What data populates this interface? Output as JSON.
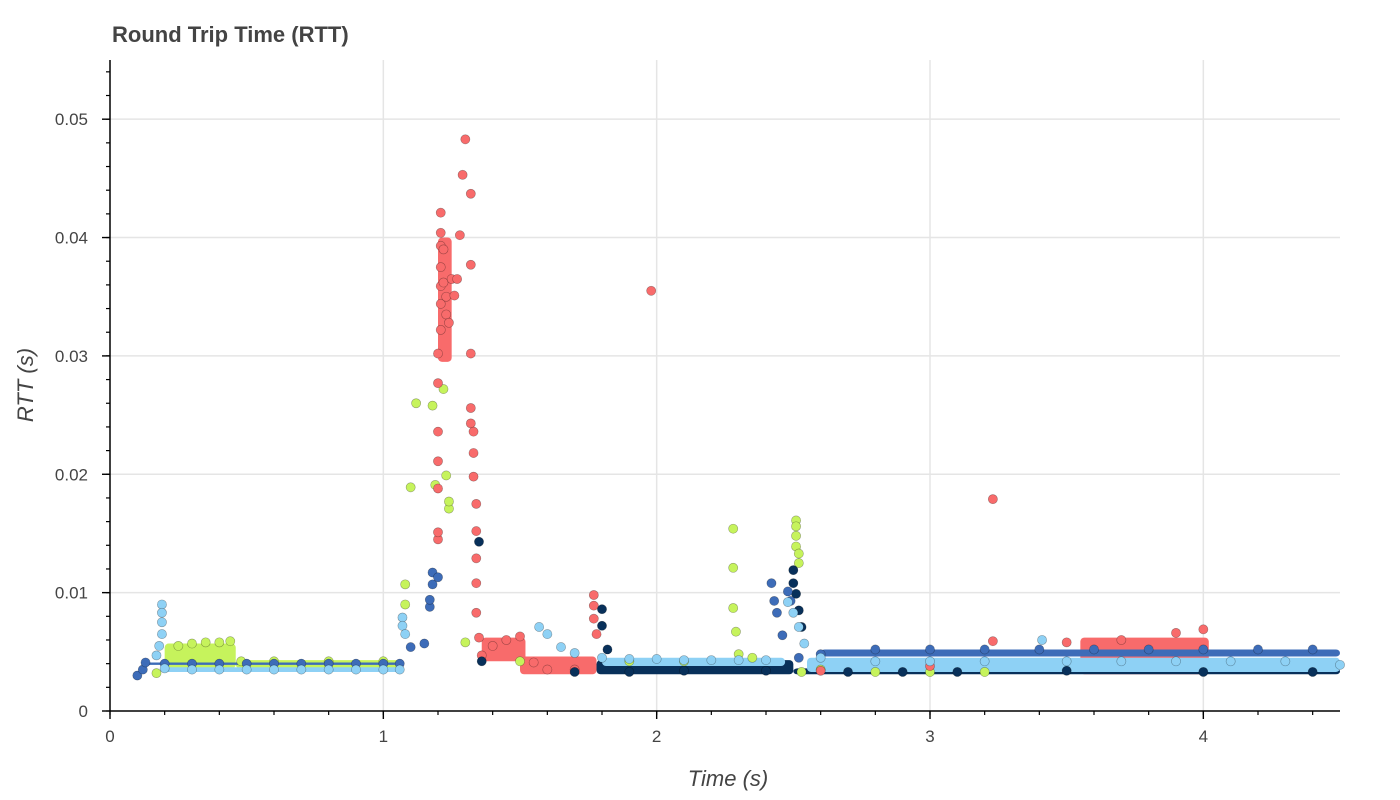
{
  "chart_data": {
    "type": "scatter",
    "title": "Round Trip Time (RTT)",
    "xlabel": "Time (s)",
    "ylabel": "RTT (s)",
    "xlim": [
      0,
      4.5
    ],
    "ylim": [
      0,
      0.055
    ],
    "x_ticks": [
      0,
      1,
      2,
      3,
      4
    ],
    "x_tick_labels": [
      "0",
      "1",
      "2",
      "3",
      "4"
    ],
    "y_ticks": [
      0,
      0.01,
      0.02,
      0.03,
      0.04,
      0.05
    ],
    "y_tick_labels": [
      "0",
      "0.01",
      "0.02",
      "0.03",
      "0.04",
      "0.05"
    ],
    "grid": true,
    "series": [
      {
        "color": "#c6f35c",
        "points": [
          [
            0.17,
            0.0032
          ],
          [
            0.25,
            0.0055
          ],
          [
            0.3,
            0.0057
          ],
          [
            0.35,
            0.0058
          ],
          [
            0.4,
            0.0058
          ],
          [
            0.44,
            0.0059
          ],
          [
            0.48,
            0.0042
          ],
          [
            0.6,
            0.0042
          ],
          [
            0.8,
            0.0042
          ],
          [
            1.0,
            0.0042
          ],
          [
            1.08,
            0.0107
          ],
          [
            1.08,
            0.009
          ],
          [
            1.1,
            0.0189
          ],
          [
            1.12,
            0.026
          ],
          [
            1.18,
            0.0258
          ],
          [
            1.19,
            0.0191
          ],
          [
            1.22,
            0.0272
          ],
          [
            1.23,
            0.0199
          ],
          [
            1.24,
            0.0171
          ],
          [
            1.24,
            0.0177
          ],
          [
            1.3,
            0.0058
          ],
          [
            1.5,
            0.0042
          ],
          [
            1.9,
            0.0042
          ],
          [
            2.1,
            0.0042
          ],
          [
            2.28,
            0.0154
          ],
          [
            2.28,
            0.0121
          ],
          [
            2.28,
            0.0087
          ],
          [
            2.29,
            0.0067
          ],
          [
            2.3,
            0.0048
          ],
          [
            2.35,
            0.0045
          ],
          [
            2.51,
            0.0161
          ],
          [
            2.51,
            0.0156
          ],
          [
            2.51,
            0.0148
          ],
          [
            2.51,
            0.0139
          ],
          [
            2.52,
            0.0133
          ],
          [
            2.52,
            0.0125
          ],
          [
            2.53,
            0.0033
          ],
          [
            2.6,
            0.0035
          ],
          [
            2.8,
            0.0033
          ],
          [
            3.0,
            0.0033
          ],
          [
            3.2,
            0.0033
          ]
        ]
      },
      {
        "color": "#f86b6b",
        "points": [
          [
            1.2,
            0.0145
          ],
          [
            1.2,
            0.0151
          ],
          [
            1.2,
            0.0188
          ],
          [
            1.2,
            0.0211
          ],
          [
            1.2,
            0.0236
          ],
          [
            1.2,
            0.0277
          ],
          [
            1.2,
            0.0302
          ],
          [
            1.21,
            0.0322
          ],
          [
            1.21,
            0.0344
          ],
          [
            1.21,
            0.0359
          ],
          [
            1.21,
            0.0375
          ],
          [
            1.21,
            0.0393
          ],
          [
            1.21,
            0.0404
          ],
          [
            1.21,
            0.0421
          ],
          [
            1.22,
            0.039
          ],
          [
            1.22,
            0.0362
          ],
          [
            1.23,
            0.0335
          ],
          [
            1.23,
            0.035
          ],
          [
            1.24,
            0.0328
          ],
          [
            1.25,
            0.0365
          ],
          [
            1.26,
            0.0351
          ],
          [
            1.27,
            0.0365
          ],
          [
            1.28,
            0.0402
          ],
          [
            1.29,
            0.0453
          ],
          [
            1.3,
            0.0483
          ],
          [
            1.32,
            0.0437
          ],
          [
            1.32,
            0.0377
          ],
          [
            1.32,
            0.0302
          ],
          [
            1.32,
            0.0256
          ],
          [
            1.32,
            0.0243
          ],
          [
            1.33,
            0.0236
          ],
          [
            1.33,
            0.0218
          ],
          [
            1.33,
            0.0198
          ],
          [
            1.34,
            0.0175
          ],
          [
            1.34,
            0.0152
          ],
          [
            1.34,
            0.0129
          ],
          [
            1.34,
            0.0108
          ],
          [
            1.34,
            0.0083
          ],
          [
            1.35,
            0.0062
          ],
          [
            1.36,
            0.0047
          ],
          [
            1.4,
            0.0055
          ],
          [
            1.45,
            0.006
          ],
          [
            1.5,
            0.0063
          ],
          [
            1.55,
            0.0041
          ],
          [
            1.6,
            0.0035
          ],
          [
            1.7,
            0.0035
          ],
          [
            1.77,
            0.0098
          ],
          [
            1.77,
            0.0089
          ],
          [
            1.77,
            0.0078
          ],
          [
            1.78,
            0.0065
          ],
          [
            1.98,
            0.0355
          ],
          [
            3.23,
            0.0179
          ],
          [
            3.23,
            0.0059
          ],
          [
            3.5,
            0.0058
          ],
          [
            3.7,
            0.006
          ],
          [
            3.9,
            0.0066
          ],
          [
            4.0,
            0.0069
          ],
          [
            3.0,
            0.0038
          ],
          [
            2.6,
            0.0034
          ]
        ]
      },
      {
        "color": "#08305a",
        "points": [
          [
            1.35,
            0.0143
          ],
          [
            1.36,
            0.0042
          ],
          [
            1.7,
            0.0033
          ],
          [
            1.8,
            0.0086
          ],
          [
            1.8,
            0.0072
          ],
          [
            1.82,
            0.0052
          ],
          [
            1.9,
            0.0033
          ],
          [
            2.1,
            0.0034
          ],
          [
            2.4,
            0.0034
          ],
          [
            2.5,
            0.0119
          ],
          [
            2.5,
            0.0108
          ],
          [
            2.51,
            0.0099
          ],
          [
            2.52,
            0.0085
          ],
          [
            2.53,
            0.0071
          ],
          [
            2.7,
            0.0033
          ],
          [
            2.9,
            0.0033
          ],
          [
            3.1,
            0.0033
          ],
          [
            3.5,
            0.0034
          ],
          [
            4.0,
            0.0033
          ],
          [
            4.4,
            0.0033
          ]
        ]
      },
      {
        "color": "#3d6cb8",
        "points": [
          [
            0.1,
            0.003
          ],
          [
            0.12,
            0.0035
          ],
          [
            0.13,
            0.0041
          ],
          [
            0.2,
            0.004
          ],
          [
            0.3,
            0.004
          ],
          [
            0.4,
            0.004
          ],
          [
            0.5,
            0.004
          ],
          [
            0.6,
            0.004
          ],
          [
            0.7,
            0.004
          ],
          [
            0.8,
            0.004
          ],
          [
            0.9,
            0.004
          ],
          [
            1.0,
            0.004
          ],
          [
            1.06,
            0.004
          ],
          [
            1.1,
            0.0054
          ],
          [
            1.15,
            0.0057
          ],
          [
            1.17,
            0.0088
          ],
          [
            1.17,
            0.0094
          ],
          [
            1.18,
            0.0107
          ],
          [
            1.18,
            0.0117
          ],
          [
            1.2,
            0.0113
          ],
          [
            2.42,
            0.0108
          ],
          [
            2.43,
            0.0093
          ],
          [
            2.44,
            0.0083
          ],
          [
            2.46,
            0.0064
          ],
          [
            2.48,
            0.0101
          ],
          [
            2.49,
            0.0093
          ],
          [
            2.52,
            0.0045
          ],
          [
            2.6,
            0.0048
          ],
          [
            2.8,
            0.0052
          ],
          [
            3.0,
            0.0052
          ],
          [
            3.2,
            0.0052
          ],
          [
            3.4,
            0.0052
          ],
          [
            3.6,
            0.0052
          ],
          [
            3.8,
            0.0052
          ],
          [
            4.0,
            0.0052
          ],
          [
            4.2,
            0.0052
          ],
          [
            4.4,
            0.0052
          ]
        ]
      },
      {
        "color": "#8ed1f5",
        "points": [
          [
            0.19,
            0.009
          ],
          [
            0.19,
            0.0083
          ],
          [
            0.19,
            0.0075
          ],
          [
            0.19,
            0.0065
          ],
          [
            0.18,
            0.0055
          ],
          [
            0.17,
            0.0047
          ],
          [
            0.2,
            0.0036
          ],
          [
            0.3,
            0.0035
          ],
          [
            0.4,
            0.0035
          ],
          [
            0.5,
            0.0035
          ],
          [
            0.6,
            0.0035
          ],
          [
            0.7,
            0.0035
          ],
          [
            0.8,
            0.0035
          ],
          [
            0.9,
            0.0035
          ],
          [
            1.0,
            0.0035
          ],
          [
            1.06,
            0.0035
          ],
          [
            1.07,
            0.0079
          ],
          [
            1.07,
            0.0072
          ],
          [
            1.08,
            0.0065
          ],
          [
            1.57,
            0.0071
          ],
          [
            1.6,
            0.0065
          ],
          [
            1.65,
            0.0054
          ],
          [
            1.7,
            0.0049
          ],
          [
            1.8,
            0.0045
          ],
          [
            1.9,
            0.0044
          ],
          [
            2.0,
            0.0044
          ],
          [
            2.1,
            0.0043
          ],
          [
            2.2,
            0.0043
          ],
          [
            2.3,
            0.0043
          ],
          [
            2.4,
            0.0043
          ],
          [
            2.48,
            0.0092
          ],
          [
            2.5,
            0.0083
          ],
          [
            2.52,
            0.0071
          ],
          [
            2.54,
            0.0057
          ],
          [
            2.6,
            0.0045
          ],
          [
            2.8,
            0.0042
          ],
          [
            3.0,
            0.0042
          ],
          [
            3.2,
            0.0042
          ],
          [
            3.41,
            0.006
          ],
          [
            3.5,
            0.0042
          ],
          [
            3.7,
            0.0042
          ],
          [
            3.9,
            0.0042
          ],
          [
            4.1,
            0.0042
          ],
          [
            4.3,
            0.0042
          ],
          [
            4.5,
            0.0039
          ]
        ]
      }
    ],
    "bands": [
      {
        "color": "#c6f35c",
        "x0": 0.2,
        "x1": 0.46,
        "y0": 0.0036,
        "y1": 0.0057
      },
      {
        "color": "#c6f35c",
        "x0": 0.46,
        "x1": 1.06,
        "y0": 0.0036,
        "y1": 0.0043
      },
      {
        "color": "#f86b6b",
        "x0": 1.2,
        "x1": 1.25,
        "y0": 0.0295,
        "y1": 0.04
      },
      {
        "color": "#f86b6b",
        "x0": 1.36,
        "x1": 1.52,
        "y0": 0.0042,
        "y1": 0.0062
      },
      {
        "color": "#f86b6b",
        "x0": 1.5,
        "x1": 1.78,
        "y0": 0.0031,
        "y1": 0.0046
      },
      {
        "color": "#f86b6b",
        "x0": 3.55,
        "x1": 4.02,
        "y0": 0.0031,
        "y1": 0.0062
      },
      {
        "color": "#08305a",
        "x0": 1.78,
        "x1": 2.5,
        "y0": 0.0031,
        "y1": 0.0043
      },
      {
        "color": "#08305a",
        "x0": 2.5,
        "x1": 4.5,
        "y0": 0.0031,
        "y1": 0.0036
      },
      {
        "color": "#3d6cb8",
        "x0": 0.13,
        "x1": 1.06,
        "y0": 0.0039,
        "y1": 0.0041
      },
      {
        "color": "#3d6cb8",
        "x0": 2.6,
        "x1": 4.5,
        "y0": 0.0046,
        "y1": 0.0052
      },
      {
        "color": "#8ed1f5",
        "x0": 0.2,
        "x1": 1.07,
        "y0": 0.0033,
        "y1": 0.0037
      },
      {
        "color": "#8ed1f5",
        "x0": 1.8,
        "x1": 2.47,
        "y0": 0.0038,
        "y1": 0.0045
      },
      {
        "color": "#8ed1f5",
        "x0": 2.55,
        "x1": 4.5,
        "y0": 0.0033,
        "y1": 0.0045
      }
    ]
  }
}
